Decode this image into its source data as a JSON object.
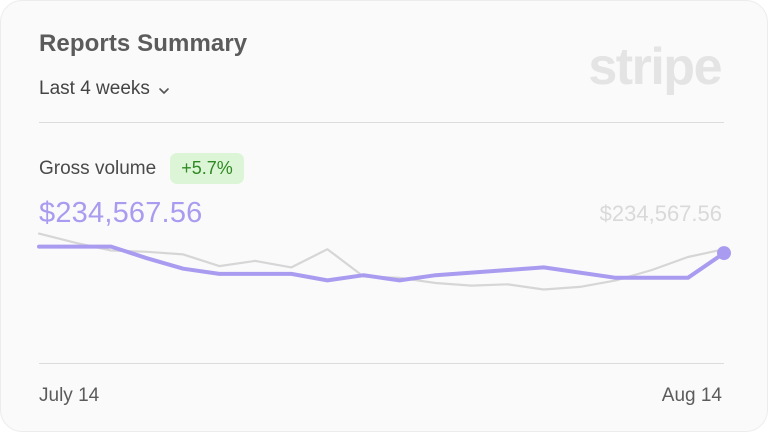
{
  "card": {
    "title": "Reports Summary",
    "range_label": "Last 4 weeks",
    "logo_text": "stripe"
  },
  "metric": {
    "label": "Gross volume",
    "change": "+5.7%",
    "value": "$234,567.56",
    "compare_value": "$234,567.56"
  },
  "colors": {
    "primary_series": "#a99cf0",
    "compare_series": "#d6d6d6",
    "badge_bg": "#dcf5d6",
    "badge_text": "#2f8a23"
  },
  "chart_data": {
    "type": "line",
    "x_labels": [
      "July 14",
      "Aug 14"
    ],
    "ylim": [
      0,
      100
    ],
    "series": [
      {
        "values": [
          88,
          88,
          88,
          79,
          71,
          67,
          67,
          67,
          62,
          66,
          62,
          66,
          68,
          70,
          72,
          68,
          64,
          64,
          64,
          83
        ]
      },
      {
        "values": [
          98,
          91,
          85,
          84,
          82,
          73,
          77,
          72,
          86,
          65,
          64,
          60,
          58,
          59,
          55,
          57,
          62,
          70,
          80,
          86
        ]
      }
    ]
  }
}
